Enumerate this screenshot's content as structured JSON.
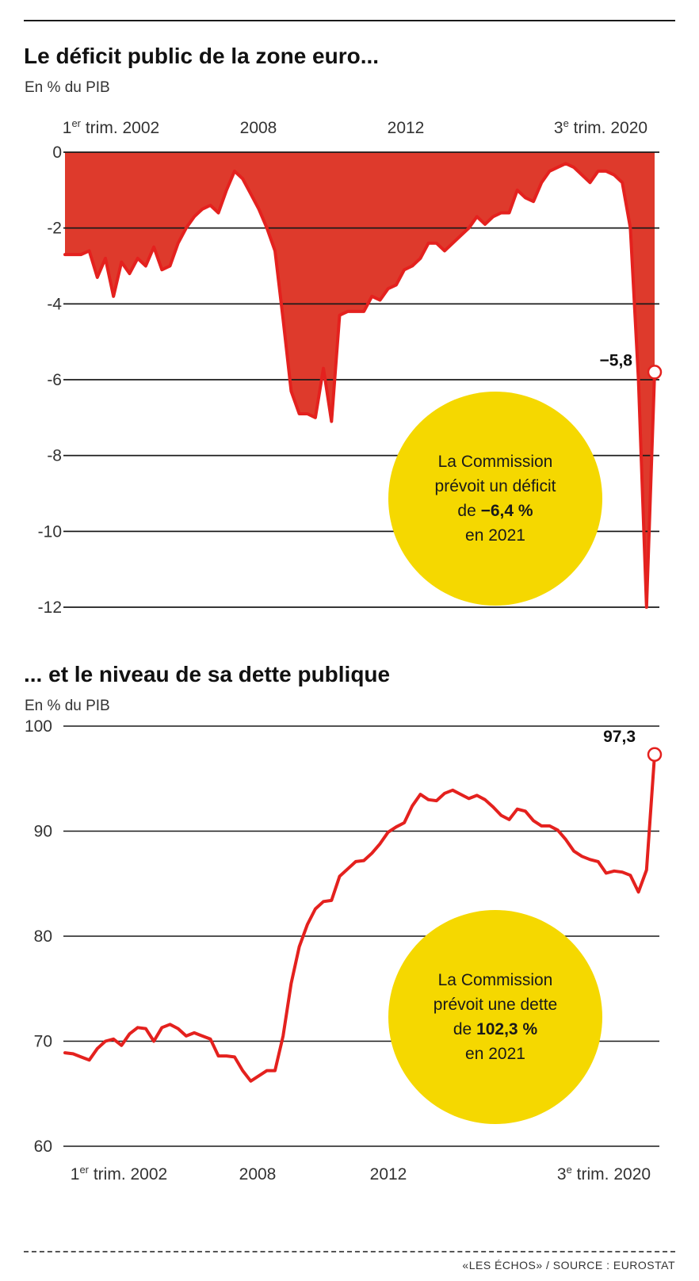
{
  "chart_data": [
    {
      "type": "area",
      "title": "Le déficit public de la zone euro...",
      "subtitle": "En % du PIB",
      "x_tick_labels": [
        "1er trim. 2002",
        "2008",
        "2012",
        "3e trim. 2020"
      ],
      "y_ticks": [
        "0",
        "-2",
        "-4",
        "-6",
        "-8",
        "-10",
        "-12"
      ],
      "ylim": [
        -12,
        0
      ],
      "grid": true,
      "series": [
        {
          "values": [
            -2.7,
            -2.7,
            -2.7,
            -2.6,
            -3.3,
            -2.8,
            -3.8,
            -2.9,
            -3.2,
            -2.8,
            -3.0,
            -2.5,
            -3.1,
            -3.0,
            -2.4,
            -2.0,
            -1.7,
            -1.5,
            -1.4,
            -1.6,
            -1.0,
            -0.5,
            -0.7,
            -1.1,
            -1.5,
            -2.0,
            -2.6,
            -4.4,
            -6.3,
            -6.9,
            -6.9,
            -7.0,
            -5.7,
            -7.1,
            -4.3,
            -4.2,
            -4.2,
            -4.2,
            -3.8,
            -3.9,
            -3.6,
            -3.5,
            -3.1,
            -3.0,
            -2.8,
            -2.4,
            -2.4,
            -2.6,
            -2.4,
            -2.2,
            -2.0,
            -1.7,
            -1.9,
            -1.7,
            -1.6,
            -1.6,
            -1.0,
            -1.2,
            -1.3,
            -0.8,
            -0.5,
            -0.4,
            -0.3,
            -0.4,
            -0.6,
            -0.8,
            -0.5,
            -0.5,
            -0.6,
            -0.8,
            -2.0,
            -6.0,
            -12.0,
            -5.8
          ],
          "color": "#e4211e",
          "fill": "#de3a2c"
        }
      ],
      "last_value_label": "−5,8"
    },
    {
      "type": "line",
      "title": "... et le niveau de sa dette publique",
      "subtitle": "En % du PIB",
      "x_tick_labels": [
        "1er trim. 2002",
        "2008",
        "2012",
        "3e trim. 2020"
      ],
      "y_ticks": [
        "100",
        "90",
        "80",
        "70",
        "60"
      ],
      "ylim": [
        60,
        100
      ],
      "grid": true,
      "series": [
        {
          "values": [
            68.9,
            68.8,
            68.5,
            68.2,
            69.3,
            70.0,
            70.2,
            69.6,
            70.7,
            71.3,
            71.2,
            70.0,
            71.3,
            71.6,
            71.2,
            70.5,
            70.8,
            70.5,
            70.2,
            68.6,
            68.6,
            68.5,
            67.2,
            66.2,
            66.7,
            67.2,
            67.2,
            70.5,
            75.5,
            79.0,
            81.1,
            82.6,
            83.3,
            83.4,
            85.7,
            86.4,
            87.1,
            87.2,
            87.9,
            88.8,
            89.9,
            90.4,
            90.8,
            92.4,
            93.5,
            93.0,
            92.9,
            93.6,
            93.9,
            93.5,
            93.1,
            93.4,
            93.0,
            92.3,
            91.5,
            91.1,
            92.1,
            91.9,
            91.0,
            90.5,
            90.5,
            90.1,
            89.2,
            88.1,
            87.6,
            87.3,
            87.1,
            86.0,
            86.2,
            86.1,
            85.8,
            84.2,
            86.3,
            97.3
          ],
          "color": "#e4211e"
        }
      ],
      "last_value_label": "97,3"
    }
  ],
  "bubble1": {
    "line1": "La Commission",
    "line2": "prévoit un déficit",
    "line3_pre": "de ",
    "line3_bold": "−6,4 %",
    "line4": "en 2021"
  },
  "bubble2": {
    "line1": "La Commission",
    "line2": "prévoit une dette",
    "line3_pre": "de ",
    "line3_bold": "102,3 %",
    "line4": "en 2021"
  },
  "source": "«LES ÉCHOS» / SOURCE : EUROSTAT",
  "colors": {
    "accent": "#e4211e",
    "area_fill": "#de3a2c",
    "bubble": "#f5d800"
  }
}
